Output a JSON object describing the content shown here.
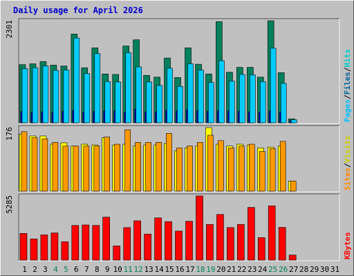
{
  "chart_data": {
    "type": "bar",
    "title": "Daily usage for April 2026",
    "days": [
      "1",
      "2",
      "3",
      "4",
      "5",
      "6",
      "7",
      "8",
      "9",
      "10",
      "11",
      "12",
      "13",
      "14",
      "15",
      "16",
      "17",
      "18",
      "19",
      "20",
      "21",
      "22",
      "23",
      "24",
      "25",
      "26",
      "27",
      "28",
      "29",
      "30",
      "31"
    ],
    "weekend_days": [
      "4",
      "5",
      "11",
      "12",
      "18",
      "19",
      "25",
      "26"
    ],
    "colors": {
      "title": "#0000cc",
      "hits": "#00cccc",
      "files": "#006699",
      "pages": "#00c0ff",
      "visits": "#ffff00",
      "sites": "#ff9900",
      "kbytes": "#ff0000",
      "weekend_label": "#00805c",
      "weekday_label": "#000000"
    },
    "panels": [
      {
        "id": "hits",
        "max_label": "2301",
        "ylim": [
          0,
          2301
        ],
        "right_labels": [
          {
            "text": "Hits",
            "color": "#00cccc"
          },
          {
            "text": "/",
            "color": "#000000"
          },
          {
            "text": "Files",
            "color": "#006699"
          },
          {
            "text": "/",
            "color": "#000000"
          },
          {
            "text": "Pages",
            "color": "#00c0ff"
          }
        ],
        "series": [
          {
            "name": "Hits",
            "color": "#00805c",
            "values": [
              1310,
              1330,
              1380,
              1300,
              1280,
              2000,
              1240,
              1690,
              1100,
              1090,
              1730,
              1870,
              1070,
              1030,
              1460,
              1020,
              1690,
              1320,
              1100,
              2280,
              1140,
              1250,
              1250,
              1030,
              2300,
              1130,
              90,
              0,
              0,
              0,
              0
            ]
          },
          {
            "name": "Files",
            "color": "#0000cc",
            "values": [
              260,
              230,
              250,
              230,
              260,
              280,
              240,
              260,
              270,
              270,
              240,
              310,
              250,
              250,
              290,
              270,
              290,
              280,
              260,
              280,
              270,
              260,
              250,
              240,
              270,
              240,
              50,
              0,
              0,
              0,
              0
            ]
          },
          {
            "name": "Pages",
            "color": "#00ccff",
            "values": [
              1220,
              1240,
              1280,
              1180,
              1190,
              1910,
              1110,
              1560,
              930,
              920,
              1580,
              1260,
              920,
              840,
              1230,
              820,
              1330,
              1190,
              910,
              1400,
              940,
              1090,
              1080,
              930,
              1680,
              890,
              70,
              0,
              0,
              0,
              0
            ]
          }
        ]
      },
      {
        "id": "visits",
        "max_label": "176",
        "ylim": [
          0,
          176
        ],
        "right_labels": [
          {
            "text": "Visits",
            "color": "#cccc00"
          },
          {
            "text": "/",
            "color": "#000000"
          },
          {
            "text": "Sites",
            "color": "#ff8800"
          }
        ],
        "series": [
          {
            "name": "Visits",
            "color": "#ffff00",
            "values": [
              158,
              153,
              153,
              130,
              134,
              125,
              130,
              128,
              148,
              128,
              130,
              125,
              128,
              128,
              132,
              112,
              120,
              125,
              176,
              130,
              125,
              130,
              128,
              120,
              122,
              125,
              28,
              0,
              0,
              0,
              0
            ]
          },
          {
            "name": "Sites",
            "color": "#ff9900",
            "values": [
              165,
              148,
              145,
              135,
              125,
              125,
              125,
              125,
              150,
              130,
              170,
              135,
              135,
              135,
              160,
              120,
              125,
              135,
              155,
              140,
              120,
              125,
              130,
              110,
              118,
              138,
              28,
              0,
              0,
              0,
              0
            ]
          }
        ]
      },
      {
        "id": "kbytes",
        "max_label": "5285",
        "ylim": [
          0,
          5285
        ],
        "right_labels": [
          {
            "text": "KBytes",
            "color": "#ff0000"
          }
        ],
        "series": [
          {
            "name": "KBytes",
            "color": "#ff0000",
            "values": [
              2200,
              1750,
              2080,
              2240,
              1510,
              2860,
              2900,
              2860,
              3540,
              1170,
              2680,
              3240,
              2150,
              3480,
              3170,
              2390,
              3200,
              5285,
              2940,
              3760,
              2680,
              2940,
              4340,
              1860,
              4470,
              2700,
              420,
              0,
              0,
              0,
              0
            ]
          }
        ]
      }
    ]
  }
}
